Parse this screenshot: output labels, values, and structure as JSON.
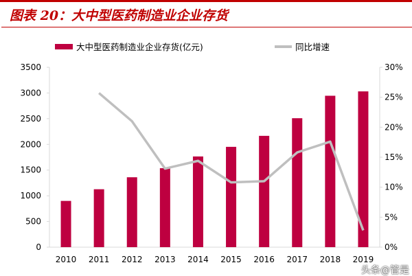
{
  "title": "图表 20：大中型医药制造业企业存货",
  "watermark": "头条@管是",
  "colors": {
    "bar": "#be0040",
    "line": "#bfbfbf",
    "title": "#c00000"
  },
  "chart_data": {
    "type": "bar+line",
    "categories": [
      "2010",
      "2011",
      "2012",
      "2013",
      "2014",
      "2015",
      "2016",
      "2017",
      "2018",
      "2019"
    ],
    "series": [
      {
        "name": "大中型医药制造业企业存货(亿元)",
        "type": "bar",
        "axis": "left",
        "values": [
          900,
          1127,
          1360,
          1537,
          1765,
          1952,
          2166,
          2509,
          2946,
          3031
        ]
      },
      {
        "name": "同比增速",
        "type": "line",
        "axis": "right",
        "values": [
          null,
          25.7,
          21.0,
          13.1,
          14.4,
          10.8,
          11.0,
          15.8,
          17.6,
          2.8
        ]
      }
    ],
    "y_left": {
      "range": [
        0,
        3500
      ],
      "ticks": [
        "0",
        "500",
        "1000",
        "1500",
        "2000",
        "2500",
        "3000",
        "3500"
      ]
    },
    "y_right": {
      "range": [
        0,
        30
      ],
      "ticks": [
        "0%",
        "5%",
        "10%",
        "15%",
        "20%",
        "25%",
        "30%"
      ]
    },
    "grid": false,
    "legend": "top"
  }
}
